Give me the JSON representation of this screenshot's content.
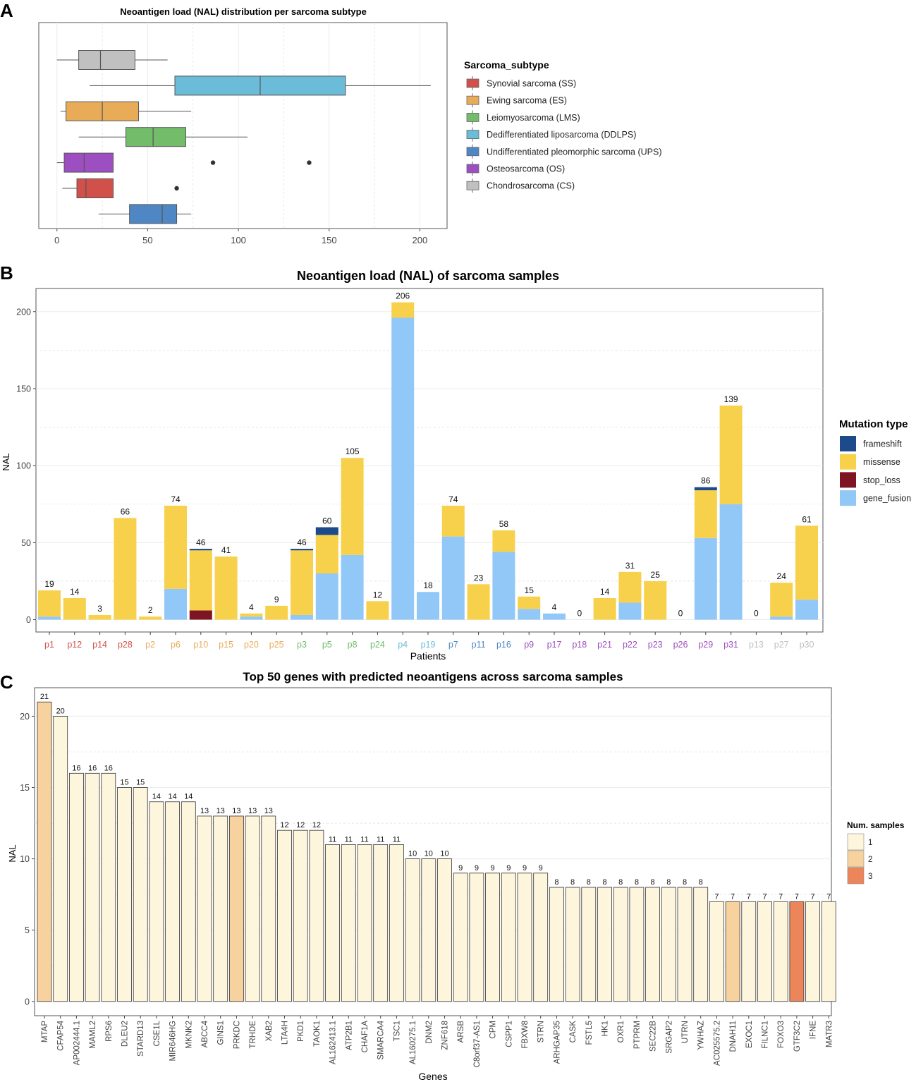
{
  "chart_data": [
    {
      "panel": "A",
      "type": "boxplot",
      "orientation": "horizontal",
      "title": "Neoantigen load (NAL) distribution per sarcoma subtype",
      "xlabel": "",
      "ylabel": "",
      "xlim": [
        -10,
        215
      ],
      "xticks": [
        0,
        50,
        100,
        150,
        200
      ],
      "grid": true,
      "legend": {
        "title": "Sarcoma_subtype",
        "position": "right",
        "entries": [
          {
            "label": "Synovial sarcoma (SS)",
            "color": "#d1514a"
          },
          {
            "label": "Ewing sarcoma (ES)",
            "color": "#e8ab58"
          },
          {
            "label": "Leiomyosarcoma (LMS)",
            "color": "#72bc6a"
          },
          {
            "label": "Dedifferentiated liposarcoma (DDLPS)",
            "color": "#6bbcd9"
          },
          {
            "label": "Undifferentiated pleomorphic sarcoma (UPS)",
            "color": "#4f87c4"
          },
          {
            "label": "Osteosarcoma (OS)",
            "color": "#9d4ec0"
          },
          {
            "label": "Chondrosarcoma (CS)",
            "color": "#c0c0c0"
          }
        ]
      },
      "boxes": [
        {
          "subtype": "Chondrosarcoma (CS)",
          "color": "#c0c0c0",
          "min": 0,
          "q1": 12,
          "median": 24,
          "q3": 43,
          "max": 61,
          "outliers": []
        },
        {
          "subtype": "Dedifferentiated liposarcoma (DDLPS)",
          "color": "#6bbcd9",
          "min": 18,
          "q1": 65,
          "median": 112,
          "q3": 159,
          "max": 206,
          "outliers": []
        },
        {
          "subtype": "Ewing sarcoma (ES)",
          "color": "#e8ab58",
          "min": 2,
          "q1": 5,
          "median": 25,
          "q3": 45,
          "max": 74,
          "outliers": []
        },
        {
          "subtype": "Leiomyosarcoma (LMS)",
          "color": "#72bc6a",
          "min": 12,
          "q1": 38,
          "median": 53,
          "q3": 71,
          "max": 105,
          "outliers": []
        },
        {
          "subtype": "Osteosarcoma (OS)",
          "color": "#9d4ec0",
          "min": 0,
          "q1": 4,
          "median": 15,
          "q3": 31,
          "max": 31,
          "outliers": [
            86,
            139
          ]
        },
        {
          "subtype": "Synovial sarcoma (SS)",
          "color": "#d1514a",
          "min": 3,
          "q1": 11,
          "median": 16,
          "q3": 31,
          "max": 31,
          "outliers": [
            66
          ]
        },
        {
          "subtype": "Undifferentiated pleomorphic sarcoma (UPS)",
          "color": "#4f87c4",
          "min": 23,
          "q1": 40,
          "median": 58,
          "q3": 66,
          "max": 74,
          "outliers": []
        }
      ]
    },
    {
      "panel": "B",
      "type": "bar",
      "stacked": true,
      "title": "Neoantigen load (NAL) of sarcoma samples",
      "xlabel": "Patients",
      "ylabel": "NAL",
      "ylim": [
        -8,
        215
      ],
      "yticks": [
        0,
        50,
        100,
        150,
        200
      ],
      "grid": true,
      "legend": {
        "title": "Mutation type",
        "position": "right",
        "entries": [
          {
            "label": "frameshift",
            "color": "#1c4a8a"
          },
          {
            "label": "missense",
            "color": "#f7d14b"
          },
          {
            "label": "stop_loss",
            "color": "#7d1622"
          },
          {
            "label": "gene_fusion",
            "color": "#92c8f7"
          }
        ]
      },
      "categories": [
        "p1",
        "p12",
        "p14",
        "p28",
        "p2",
        "p6",
        "p10",
        "p15",
        "p20",
        "p25",
        "p3",
        "p5",
        "p8",
        "p24",
        "p4",
        "p19",
        "p7",
        "p11",
        "p16",
        "p9",
        "p17",
        "p18",
        "p21",
        "p22",
        "p23",
        "p26",
        "p29",
        "p31",
        "p13",
        "p27",
        "p30"
      ],
      "category_colors": [
        "#d1514a",
        "#d1514a",
        "#d1514a",
        "#d1514a",
        "#e8ab58",
        "#e8ab58",
        "#e8ab58",
        "#e8ab58",
        "#e8ab58",
        "#e8ab58",
        "#72bc6a",
        "#72bc6a",
        "#72bc6a",
        "#72bc6a",
        "#6bbcd9",
        "#6bbcd9",
        "#4f87c4",
        "#4f87c4",
        "#4f87c4",
        "#9d4ec0",
        "#9d4ec0",
        "#9d4ec0",
        "#9d4ec0",
        "#9d4ec0",
        "#9d4ec0",
        "#9d4ec0",
        "#9d4ec0",
        "#9d4ec0",
        "#c0c0c0",
        "#c0c0c0",
        "#c0c0c0"
      ],
      "totals": [
        19,
        14,
        3,
        66,
        2,
        74,
        46,
        41,
        4,
        9,
        46,
        60,
        105,
        12,
        206,
        18,
        74,
        23,
        58,
        15,
        4,
        0,
        14,
        31,
        25,
        0,
        86,
        139,
        0,
        24,
        61
      ],
      "series": [
        {
          "name": "gene_fusion",
          "values": [
            2,
            0,
            0,
            0,
            0,
            20,
            0,
            0,
            2,
            0,
            3,
            30,
            42,
            0,
            196,
            18,
            54,
            0,
            44,
            7,
            4,
            0,
            0,
            11,
            0,
            0,
            53,
            75,
            0,
            2,
            13
          ]
        },
        {
          "name": "stop_loss",
          "values": [
            0,
            0,
            0,
            0,
            0,
            0,
            6,
            0,
            0,
            0,
            0,
            0,
            0,
            0,
            0,
            0,
            0,
            0,
            0,
            0,
            0,
            0,
            0,
            0,
            0,
            0,
            0,
            0,
            0,
            0,
            0
          ]
        },
        {
          "name": "missense",
          "values": [
            17,
            14,
            3,
            66,
            2,
            54,
            39,
            41,
            2,
            9,
            42,
            25,
            63,
            12,
            10,
            0,
            20,
            23,
            14,
            8,
            0,
            0,
            14,
            20,
            25,
            0,
            31,
            64,
            0,
            22,
            48
          ]
        },
        {
          "name": "frameshift",
          "values": [
            0,
            0,
            0,
            0,
            0,
            0,
            1,
            0,
            0,
            0,
            1,
            5,
            0,
            0,
            0,
            0,
            0,
            0,
            0,
            0,
            0,
            0,
            0,
            0,
            0,
            0,
            2,
            0,
            0,
            0,
            0
          ]
        }
      ]
    },
    {
      "panel": "C",
      "type": "bar",
      "title": "Top 50 genes with predicted neoantigens across sarcoma samples",
      "xlabel": "Genes",
      "ylabel": "NAL",
      "ylim": [
        -1,
        22
      ],
      "yticks": [
        0,
        5,
        10,
        15,
        20
      ],
      "grid": true,
      "legend": {
        "title": "Num. samples",
        "position": "right",
        "entries": [
          {
            "label": "1",
            "color": "#fdf6dc"
          },
          {
            "label": "2",
            "color": "#f7d29f"
          },
          {
            "label": "3",
            "color": "#ec8559"
          }
        ]
      },
      "categories": [
        "MTAP",
        "CFAP54",
        "AP002444.1",
        "MAML2",
        "RPS6",
        "DLEU2",
        "STARD13",
        "CSE1L",
        "MIR646HG",
        "MKNK2",
        "ABCC4",
        "GINS1",
        "PRKDC",
        "TRHDE",
        "XAB2",
        "LTA4H",
        "PKD1",
        "TAOK1",
        "AL162413.1",
        "ATP2B1",
        "CHAF1A",
        "SMARCA4",
        "TSC1",
        "AL160275.1",
        "DNM2",
        "ZNF618",
        "ARSB",
        "C8orf37-AS1",
        "CPM",
        "CSPP1",
        "FBXW8",
        "STRN",
        "ARHGAP35",
        "CASK",
        "FSTL5",
        "HK1",
        "OXR1",
        "PTPRM",
        "SEC22B",
        "SRGAP2",
        "UTRN",
        "YWHAZ",
        "AC025575.2",
        "DNAH11",
        "EXOC1",
        "FILNC1",
        "FOXO3",
        "GTF3C2",
        "IFNE",
        "MATR3"
      ],
      "values": [
        21,
        20,
        16,
        16,
        16,
        15,
        15,
        14,
        14,
        14,
        13,
        13,
        13,
        13,
        13,
        12,
        12,
        12,
        11,
        11,
        11,
        11,
        11,
        10,
        10,
        10,
        9,
        9,
        9,
        9,
        9,
        9,
        8,
        8,
        8,
        8,
        8,
        8,
        8,
        8,
        8,
        8,
        7,
        7,
        7,
        7,
        7,
        7,
        7,
        7
      ],
      "num_samples": [
        2,
        1,
        1,
        1,
        1,
        1,
        1,
        1,
        1,
        1,
        1,
        1,
        2,
        1,
        1,
        1,
        1,
        1,
        1,
        1,
        1,
        1,
        1,
        1,
        1,
        1,
        1,
        1,
        1,
        1,
        1,
        1,
        1,
        1,
        1,
        1,
        1,
        1,
        1,
        1,
        1,
        1,
        1,
        2,
        1,
        1,
        1,
        3,
        1,
        1
      ]
    }
  ],
  "panel_labels": [
    "A",
    "B",
    "C"
  ]
}
